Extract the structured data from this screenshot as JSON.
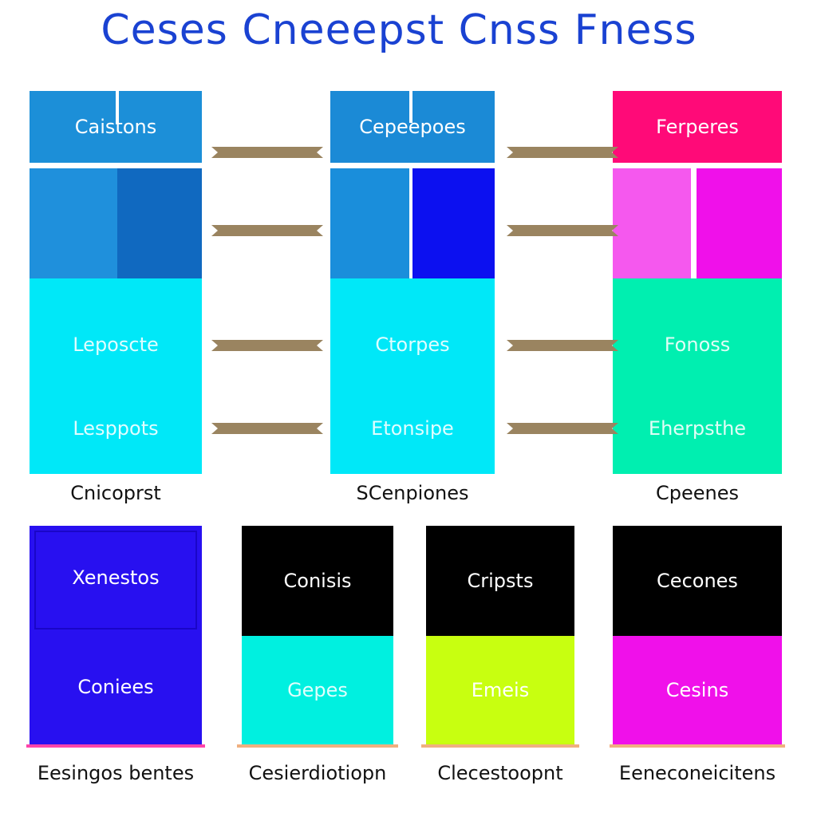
{
  "title": "Ceses Cneeepst Cnss Fness",
  "columns": [
    {
      "header": "Caistons",
      "upper_label": "Leposcte",
      "lower_label": "Lesppots",
      "caption": "Cnicoprst",
      "colors": {
        "header": "#1c8fd8",
        "left": "#1f90dc",
        "right": "#1069c0",
        "main": "#00e8f8"
      }
    },
    {
      "header": "Cepeepoes",
      "upper_label": "Ctorpes",
      "lower_label": "Etonsipe",
      "caption": "SCenpiones",
      "colors": {
        "header": "#1b8ad6",
        "left": "#1a8edb",
        "right": "#0c10f0",
        "main": "#00e8f8"
      }
    },
    {
      "header": "Ferperes",
      "upper_label": "Fonoss",
      "lower_label": "Eherpsthe",
      "caption": "Cpeenes",
      "colors": {
        "header": "#ff0a78",
        "left": "#f558ee",
        "right": "#f010ea",
        "main": "#00efb0"
      }
    }
  ],
  "cards": [
    {
      "top_label": "Xenestos",
      "bottom_label": "Coniees",
      "caption": "Eesingos bentes",
      "colors": {
        "top": "#2810f0",
        "bottom": "#2810f0",
        "underline": "#ff44aa"
      }
    },
    {
      "top_label": "Conisis",
      "bottom_label": "Gepes",
      "caption": "Cesierdiotiopn",
      "colors": {
        "top": "#000000",
        "bottom": "#00f0e0",
        "underline": "#f0b080"
      }
    },
    {
      "top_label": "Cripsts",
      "bottom_label": "Emeis",
      "caption": "Clecestoopnt",
      "colors": {
        "top": "#000000",
        "bottom": "#c8ff10",
        "underline": "#f0b080"
      }
    },
    {
      "top_label": "Cecones",
      "bottom_label": "Cesins",
      "caption": "Eeneconeicitens",
      "colors": {
        "top": "#000000",
        "bottom": "#f010ea",
        "underline": "#f0b080"
      }
    }
  ],
  "connector_color": "#9a8460"
}
